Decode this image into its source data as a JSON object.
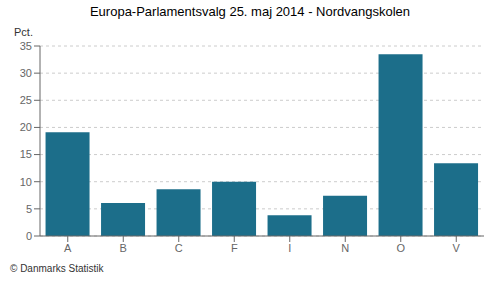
{
  "chart_data": {
    "type": "bar",
    "title": "Europa-Parlamentsvalg 25. maj 2014 - Nordvangskolen",
    "ylabel": "Pct.",
    "annotations": [
      "© Danmarks Statistik"
    ],
    "categories": [
      "A",
      "B",
      "C",
      "F",
      "I",
      "N",
      "O",
      "V"
    ],
    "values": [
      19.1,
      6.1,
      8.6,
      10.0,
      3.8,
      7.4,
      33.5,
      13.4
    ],
    "color": "#1c6e8a",
    "ylim": [
      0,
      35
    ],
    "yticks": [
      0,
      5,
      10,
      15,
      20,
      25,
      30,
      35
    ],
    "grid": true
  }
}
